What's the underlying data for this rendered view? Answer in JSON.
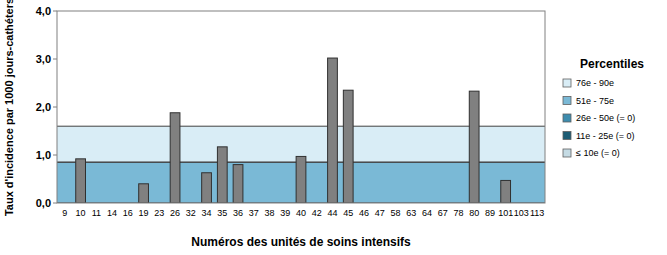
{
  "chart_data": {
    "type": "bar",
    "x_label": "Numéros des unités de soins intensifs",
    "y_label": "Taux d'incidence par 1000 jours-cathéters",
    "categories": [
      "9",
      "10",
      "11",
      "14",
      "16",
      "19",
      "23",
      "26",
      "32",
      "34",
      "35",
      "36",
      "37",
      "38",
      "39",
      "40",
      "42",
      "44",
      "45",
      "46",
      "47",
      "58",
      "63",
      "64",
      "67",
      "78",
      "80",
      "89",
      "101",
      "103",
      "113"
    ],
    "values": [
      0,
      0.92,
      0,
      0,
      0,
      0.4,
      0,
      1.88,
      0,
      0.63,
      1.17,
      0.8,
      0,
      0,
      0,
      0.97,
      0,
      3.02,
      2.35,
      0,
      0,
      0,
      0,
      0,
      0,
      0,
      2.33,
      0,
      0.47,
      0,
      0
    ],
    "color": "#808080",
    "ylim": [
      0,
      4
    ],
    "yticks": [
      {
        "value": 0,
        "label": "0,0"
      },
      {
        "value": 1,
        "label": "1,0"
      },
      {
        "value": 2,
        "label": "2,0"
      },
      {
        "value": 3,
        "label": "3,0"
      },
      {
        "value": 4,
        "label": "4,0"
      }
    ],
    "legend_title": "Percentiles",
    "percentile_bands": [
      {
        "name": "76e - 90e",
        "color": "#d9edf6",
        "range": [
          0.85,
          1.6
        ]
      },
      {
        "name": "51e - 75e",
        "color": "#7ab9d6",
        "range": [
          0,
          0.85
        ]
      },
      {
        "name": "26e - 50e (= 0)",
        "color": "#3d8cae"
      },
      {
        "name": "11e - 25e (= 0)",
        "color": "#1d5c74"
      },
      {
        "name": "≤ 10e (= 0)",
        "color": "#c5dbe4"
      }
    ]
  }
}
